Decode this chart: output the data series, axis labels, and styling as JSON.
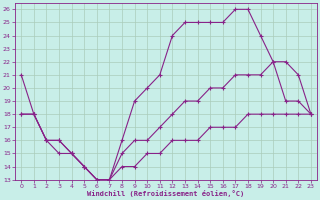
{
  "xlabel": "Windchill (Refroidissement éolien,°C)",
  "background_color": "#c8eee8",
  "grid_color": "#aaccbb",
  "line_color": "#882288",
  "xlim": [
    -0.5,
    23.5
  ],
  "ylim": [
    13,
    26.5
  ],
  "xticks": [
    0,
    1,
    2,
    3,
    4,
    5,
    6,
    7,
    8,
    9,
    10,
    11,
    12,
    13,
    14,
    15,
    16,
    17,
    18,
    19,
    20,
    21,
    22,
    23
  ],
  "yticks": [
    13,
    14,
    15,
    16,
    17,
    18,
    19,
    20,
    21,
    22,
    23,
    24,
    25,
    26
  ],
  "line1_x": [
    0,
    1,
    2,
    3,
    4,
    5,
    6,
    7,
    8,
    9,
    10,
    11,
    12,
    13,
    14,
    15,
    16,
    17,
    18,
    19,
    20,
    21,
    22,
    23
  ],
  "line1_y": [
    21,
    18,
    16,
    16,
    15,
    14,
    13,
    13,
    16,
    19,
    20,
    21,
    24,
    25,
    25,
    25,
    25,
    26,
    26,
    24,
    22,
    19,
    19,
    18
  ],
  "line2_x": [
    0,
    1,
    2,
    3,
    4,
    5,
    6,
    7,
    8,
    9,
    10,
    11,
    12,
    13,
    14,
    15,
    16,
    17,
    18,
    19,
    20,
    21,
    22,
    23
  ],
  "line2_y": [
    18,
    18,
    16,
    16,
    15,
    14,
    13,
    13,
    15,
    16,
    16,
    17,
    18,
    19,
    19,
    20,
    20,
    21,
    21,
    21,
    22,
    22,
    21,
    18
  ],
  "line3_x": [
    0,
    1,
    2,
    3,
    4,
    5,
    6,
    7,
    8,
    9,
    10,
    11,
    12,
    13,
    14,
    15,
    16,
    17,
    18,
    19,
    20,
    21,
    22,
    23
  ],
  "line3_y": [
    18,
    18,
    16,
    15,
    15,
    14,
    13,
    13,
    14,
    14,
    15,
    15,
    16,
    16,
    16,
    17,
    17,
    17,
    18,
    18,
    18,
    18,
    18,
    18
  ]
}
